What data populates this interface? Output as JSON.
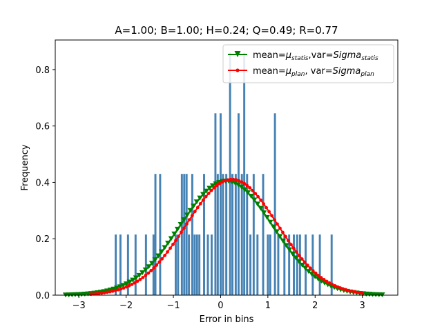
{
  "chart_data": {
    "type": "bar",
    "title": "A=1.00; B=1.00; H=0.24; Q=0.49; R=0.77",
    "xlabel": "Error in bins",
    "ylabel": "Frequency",
    "xlim": [
      -3.5,
      3.75
    ],
    "ylim": [
      0,
      0.905
    ],
    "xticks": [
      -3,
      -2,
      -1,
      0,
      1,
      2,
      3
    ],
    "yticks": [
      0.0,
      0.2,
      0.4,
      0.6,
      0.8
    ],
    "xtick_labels": [
      "−3",
      "−2",
      "−1",
      "0",
      "1",
      "2",
      "3"
    ],
    "ytick_labels": [
      "0.0",
      "0.2",
      "0.4",
      "0.6",
      "0.8"
    ],
    "grid": false,
    "legend_position": "top-right",
    "histogram": {
      "color": "#4682b4",
      "bins": [
        {
          "x": -2.22,
          "width": 0.043,
          "y": 0.215
        },
        {
          "x": -2.12,
          "width": 0.043,
          "y": 0.215
        },
        {
          "x": -1.96,
          "width": 0.043,
          "y": 0.215
        },
        {
          "x": -1.8,
          "width": 0.043,
          "y": 0.215
        },
        {
          "x": -1.58,
          "width": 0.043,
          "y": 0.215
        },
        {
          "x": -1.42,
          "width": 0.043,
          "y": 0.215
        },
        {
          "x": -1.38,
          "width": 0.043,
          "y": 0.43
        },
        {
          "x": -1.28,
          "width": 0.043,
          "y": 0.43
        },
        {
          "x": -0.95,
          "width": 0.043,
          "y": 0.215
        },
        {
          "x": -0.9,
          "width": 0.043,
          "y": 0.215
        },
        {
          "x": -0.82,
          "width": 0.043,
          "y": 0.43
        },
        {
          "x": -0.77,
          "width": 0.043,
          "y": 0.43
        },
        {
          "x": -0.72,
          "width": 0.043,
          "y": 0.43
        },
        {
          "x": -0.67,
          "width": 0.043,
          "y": 0.215
        },
        {
          "x": -0.6,
          "width": 0.043,
          "y": 0.43
        },
        {
          "x": -0.55,
          "width": 0.043,
          "y": 0.215
        },
        {
          "x": -0.5,
          "width": 0.043,
          "y": 0.215
        },
        {
          "x": -0.45,
          "width": 0.043,
          "y": 0.215
        },
        {
          "x": -0.35,
          "width": 0.043,
          "y": 0.43
        },
        {
          "x": -0.27,
          "width": 0.043,
          "y": 0.215
        },
        {
          "x": -0.19,
          "width": 0.043,
          "y": 0.215
        },
        {
          "x": -0.11,
          "width": 0.043,
          "y": 0.645
        },
        {
          "x": -0.06,
          "width": 0.043,
          "y": 0.43
        },
        {
          "x": 0.0,
          "width": 0.043,
          "y": 0.645
        },
        {
          "x": 0.05,
          "width": 0.043,
          "y": 0.43
        },
        {
          "x": 0.12,
          "width": 0.043,
          "y": 0.43
        },
        {
          "x": 0.2,
          "width": 0.043,
          "y": 0.86
        },
        {
          "x": 0.25,
          "width": 0.043,
          "y": 0.43
        },
        {
          "x": 0.32,
          "width": 0.043,
          "y": 0.43
        },
        {
          "x": 0.38,
          "width": 0.043,
          "y": 0.645
        },
        {
          "x": 0.45,
          "width": 0.043,
          "y": 0.43
        },
        {
          "x": 0.5,
          "width": 0.043,
          "y": 0.86
        },
        {
          "x": 0.56,
          "width": 0.043,
          "y": 0.43
        },
        {
          "x": 0.63,
          "width": 0.043,
          "y": 0.215
        },
        {
          "x": 0.7,
          "width": 0.043,
          "y": 0.43
        },
        {
          "x": 0.78,
          "width": 0.043,
          "y": 0.215
        },
        {
          "x": 0.9,
          "width": 0.043,
          "y": 0.43
        },
        {
          "x": 1.0,
          "width": 0.043,
          "y": 0.215
        },
        {
          "x": 1.05,
          "width": 0.043,
          "y": 0.215
        },
        {
          "x": 1.15,
          "width": 0.043,
          "y": 0.645
        },
        {
          "x": 1.22,
          "width": 0.043,
          "y": 0.215
        },
        {
          "x": 1.35,
          "width": 0.043,
          "y": 0.215
        },
        {
          "x": 1.45,
          "width": 0.043,
          "y": 0.215
        },
        {
          "x": 1.55,
          "width": 0.043,
          "y": 0.215
        },
        {
          "x": 1.62,
          "width": 0.043,
          "y": 0.215
        },
        {
          "x": 1.68,
          "width": 0.043,
          "y": 0.215
        },
        {
          "x": 1.8,
          "width": 0.043,
          "y": 0.215
        },
        {
          "x": 1.95,
          "width": 0.043,
          "y": 0.215
        },
        {
          "x": 2.1,
          "width": 0.043,
          "y": 0.215
        },
        {
          "x": 2.35,
          "width": 0.043,
          "y": 0.215
        }
      ]
    },
    "series": [
      {
        "name": "mean=μ_statis,var=Sigma_statis",
        "label_main": "mean=",
        "label_mu": "μ",
        "label_mu_sub": "statis",
        "label_mid": ",var=",
        "label_sigma": "Sigma",
        "label_sigma_sub": "statis",
        "color": "#008000",
        "marker": "triangle-down",
        "mean": 0.12,
        "std": 0.985,
        "x_range": [
          -3.28,
          3.42
        ]
      },
      {
        "name": "mean=μ_plan, var=Sigma_plan",
        "label_main": "mean=",
        "label_mu": "μ",
        "label_mu_sub": "plan",
        "label_mid": ", var=",
        "label_sigma": "Sigma",
        "label_sigma_sub": "plan",
        "color": "#ff0000",
        "marker": "circle",
        "mean": 0.24,
        "std": 0.972,
        "x_range": [
          -2.75,
          3.0
        ]
      }
    ]
  }
}
